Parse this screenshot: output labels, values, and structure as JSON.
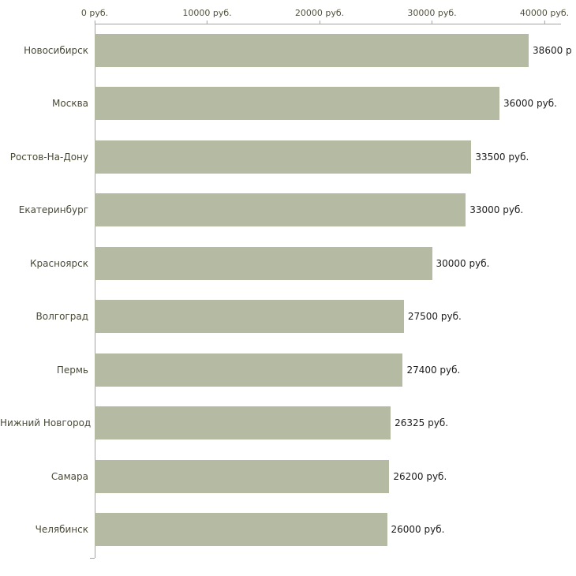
{
  "chart_data": {
    "type": "bar",
    "orientation": "horizontal",
    "title": "",
    "xlabel": "",
    "ylabel": "",
    "grid": false,
    "legend": false,
    "bar_color": "#b4bba2",
    "axis_color": "#a3a3a3",
    "categories": [
      "Новосибирск",
      "Москва",
      "Ростов-На-Дону",
      "Екатеринбург",
      "Красноярск",
      "Волгоград",
      "Пермь",
      "Нижний Новгород",
      "Самара",
      "Челябинск"
    ],
    "values": [
      38600,
      36000,
      33500,
      33000,
      30000,
      27500,
      27400,
      26325,
      26200,
      26000
    ],
    "value_labels": [
      "38600 р",
      "36000 руб.",
      "33500 руб.",
      "33000 руб.",
      "30000 руб.",
      "27500 руб.",
      "27400 руб.",
      "26325 руб.",
      "26200 руб.",
      "26000 руб."
    ],
    "x_axis": {
      "position": "top",
      "range": [
        0,
        40000
      ],
      "ticks": [
        0,
        10000,
        20000,
        30000,
        40000
      ],
      "tick_labels": [
        "0 руб.",
        "10000 руб.",
        "20000 руб.",
        "30000 руб.",
        "40000 руб."
      ]
    }
  }
}
